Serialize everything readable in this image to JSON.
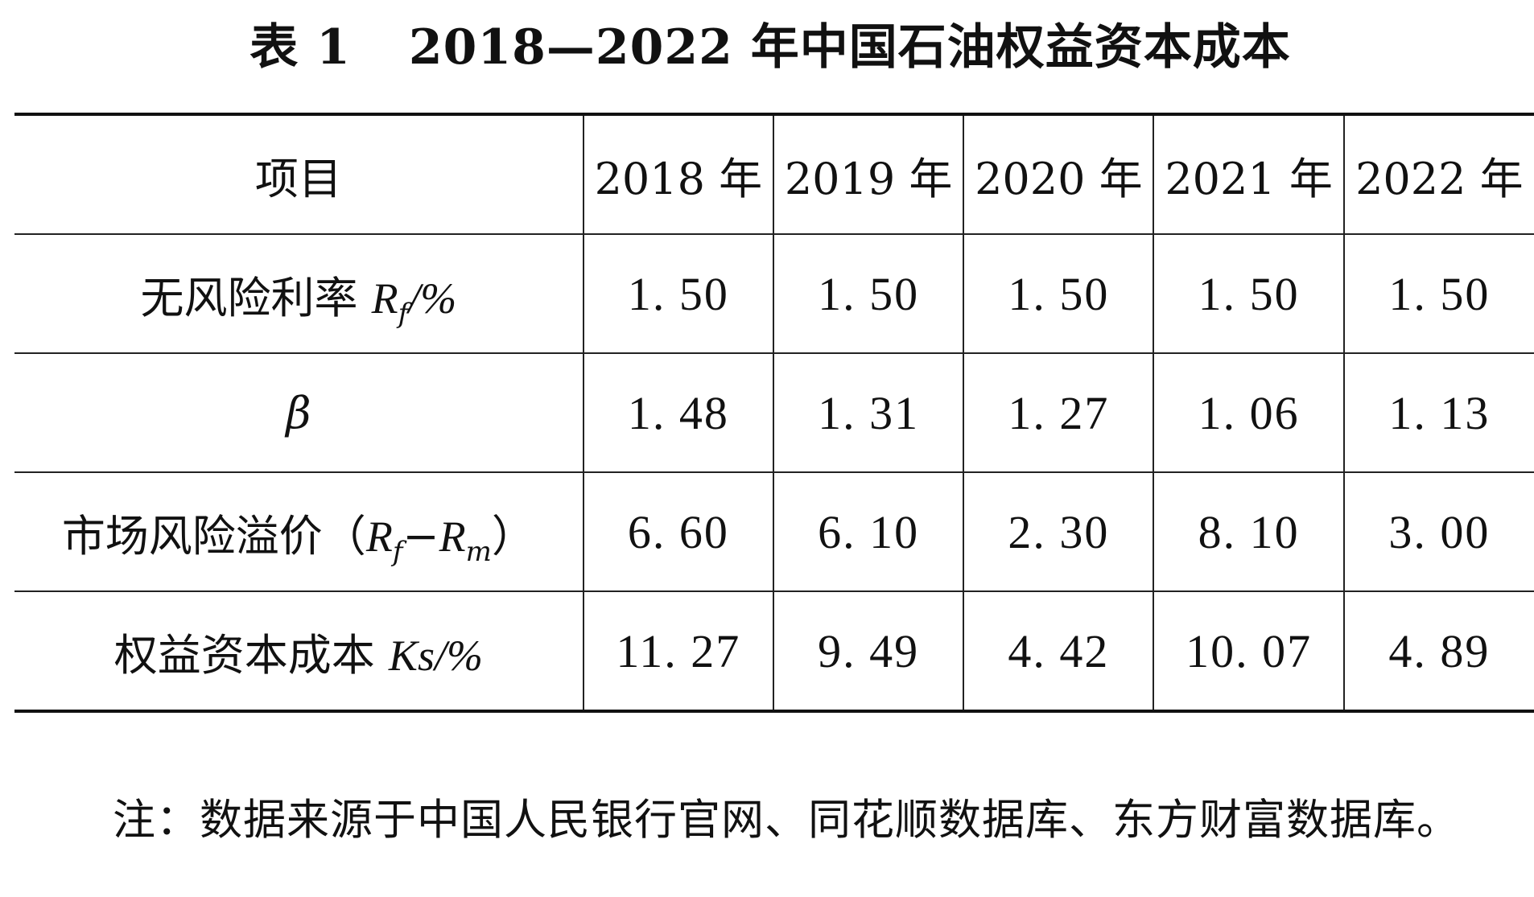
{
  "title": {
    "label": "表 1",
    "range": "2018—2022 年中国石油权益资本成本"
  },
  "table": {
    "header": {
      "item": "项目",
      "years": [
        "2018 年",
        "2019 年",
        "2020 年",
        "2021 年",
        "2022 年"
      ]
    },
    "rows": [
      {
        "label_text": "无风险利率 ",
        "label_math": "R",
        "label_sub": "f",
        "label_suffix": "/%",
        "values": [
          "1. 50",
          "1. 50",
          "1. 50",
          "1. 50",
          "1. 50"
        ]
      },
      {
        "label_text": "β",
        "values": [
          "1. 48",
          "1. 31",
          "1. 27",
          "1. 06",
          "1. 13"
        ]
      },
      {
        "label_text": "市场风险溢价（",
        "label_math": "R",
        "label_sub": "f",
        "label_mid": "−",
        "label_math2": "R",
        "label_sub2": "m",
        "label_suffix": "）",
        "values": [
          "6. 60",
          "6. 10",
          "2. 30",
          "8. 10",
          "3. 00"
        ]
      },
      {
        "label_text": "权益资本成本 ",
        "label_math": "Ks",
        "label_suffix": "/%",
        "values": [
          "11. 27",
          "9. 49",
          "4. 42",
          "10. 07",
          "4. 89"
        ]
      }
    ]
  },
  "note": "注：数据来源于中国人民银行官网、同花顺数据库、东方财富数据库。"
}
